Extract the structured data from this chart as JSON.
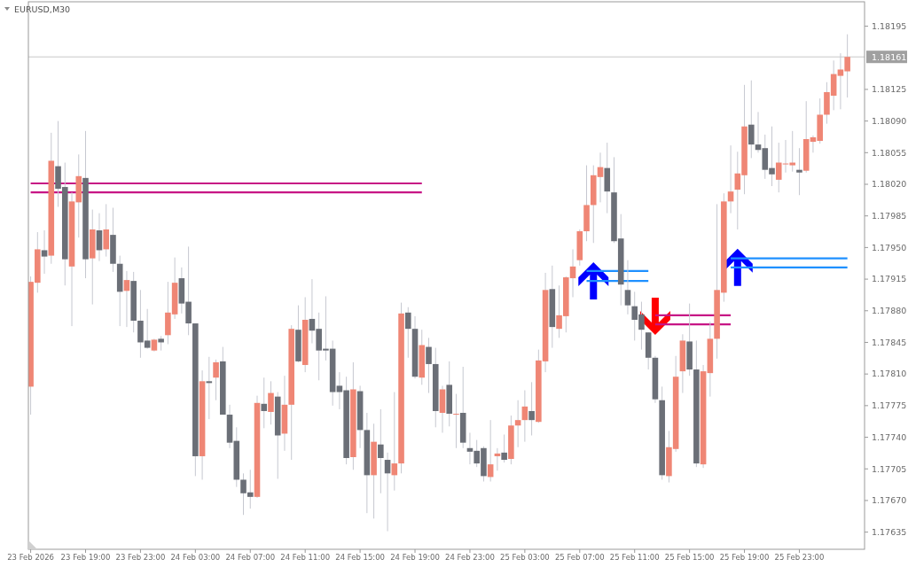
{
  "chart_data": {
    "type": "candlestick",
    "title": "EURUSD,M30",
    "x": [
      "2026-02-23T15:00",
      "2026-02-23T15:30",
      "2026-02-23T16:00",
      "2026-02-23T16:30",
      "2026-02-23T17:00",
      "2026-02-23T17:30",
      "2026-02-23T18:00",
      "2026-02-23T18:30",
      "2026-02-23T19:00",
      "2026-02-23T19:30",
      "2026-02-23T20:00",
      "2026-02-23T20:30",
      "2026-02-23T21:00",
      "2026-02-23T21:30",
      "2026-02-23T22:00",
      "2026-02-23T22:30",
      "2026-02-23T23:00",
      "2026-02-23T23:30",
      "2026-02-24T00:00",
      "2026-02-24T00:30",
      "2026-02-24T01:00",
      "2026-02-24T01:30",
      "2026-02-24T02:00",
      "2026-02-24T02:30",
      "2026-02-24T03:00",
      "2026-02-24T03:30",
      "2026-02-24T04:00",
      "2026-02-24T04:30",
      "2026-02-24T05:00",
      "2026-02-24T05:30",
      "2026-02-24T06:00",
      "2026-02-24T06:30",
      "2026-02-24T07:00",
      "2026-02-24T07:30",
      "2026-02-24T08:00",
      "2026-02-24T08:30",
      "2026-02-24T09:00",
      "2026-02-24T09:30",
      "2026-02-24T10:00",
      "2026-02-24T10:30",
      "2026-02-24T11:00",
      "2026-02-24T11:30",
      "2026-02-24T12:00",
      "2026-02-24T12:30",
      "2026-02-24T13:00",
      "2026-02-24T13:30",
      "2026-02-24T14:00",
      "2026-02-24T14:30",
      "2026-02-24T15:00",
      "2026-02-24T15:30",
      "2026-02-24T16:00",
      "2026-02-24T16:30",
      "2026-02-24T17:00",
      "2026-02-24T17:30",
      "2026-02-24T18:00",
      "2026-02-24T18:30",
      "2026-02-24T19:00",
      "2026-02-24T19:30",
      "2026-02-24T20:00",
      "2026-02-24T20:30",
      "2026-02-24T21:00",
      "2026-02-24T21:30",
      "2026-02-24T22:00",
      "2026-02-24T22:30",
      "2026-02-24T23:00",
      "2026-02-24T23:30",
      "2026-02-25T00:00",
      "2026-02-25T00:30",
      "2026-02-25T01:00",
      "2026-02-25T01:30",
      "2026-02-25T02:00",
      "2026-02-25T02:30",
      "2026-02-25T03:00",
      "2026-02-25T03:30",
      "2026-02-25T04:00",
      "2026-02-25T04:30",
      "2026-02-25T05:00",
      "2026-02-25T05:30",
      "2026-02-25T06:00",
      "2026-02-25T06:30",
      "2026-02-25T07:00",
      "2026-02-25T07:30",
      "2026-02-25T08:00",
      "2026-02-25T08:30",
      "2026-02-25T09:00",
      "2026-02-25T09:30",
      "2026-02-25T10:00",
      "2026-02-25T10:30",
      "2026-02-25T11:00",
      "2026-02-25T11:30",
      "2026-02-25T12:00",
      "2026-02-25T12:30",
      "2026-02-25T13:00",
      "2026-02-25T13:30",
      "2026-02-25T14:00",
      "2026-02-25T14:30",
      "2026-02-25T15:00",
      "2026-02-25T15:30",
      "2026-02-25T16:00",
      "2026-02-25T16:30",
      "2026-02-25T17:00",
      "2026-02-25T17:30",
      "2026-02-25T18:00",
      "2026-02-25T18:30",
      "2026-02-25T19:00",
      "2026-02-25T19:30",
      "2026-02-25T20:00",
      "2026-02-25T20:30",
      "2026-02-25T21:00",
      "2026-02-25T21:30",
      "2026-02-25T22:00",
      "2026-02-25T22:30",
      "2026-02-25T23:00",
      "2026-02-25T23:30",
      "2026-02-26T00:00",
      "2026-02-26T00:30",
      "2026-02-26T01:00",
      "2026-02-26T01:30",
      "2026-02-26T02:00",
      "2026-02-26T02:30"
    ],
    "ohlc": [
      [
        1.17796,
        1.17918,
        1.17765,
        1.17912
      ],
      [
        1.17911,
        1.17967,
        1.179,
        1.17948
      ],
      [
        1.17947,
        1.17969,
        1.17921,
        1.1794
      ],
      [
        1.17941,
        1.18077,
        1.17932,
        1.18046
      ],
      [
        1.1804,
        1.1809,
        1.17995,
        1.18015
      ],
      [
        1.18017,
        1.18044,
        1.17908,
        1.17937
      ],
      [
        1.17929,
        1.18011,
        1.17863,
        1.18001
      ],
      [
        1.18,
        1.18053,
        1.17961,
        1.18029
      ],
      [
        1.18027,
        1.18079,
        1.17916,
        1.17937
      ],
      [
        1.17938,
        1.17992,
        1.17887,
        1.1797
      ],
      [
        1.17969,
        1.17988,
        1.17935,
        1.17947
      ],
      [
        1.17948,
        1.17998,
        1.1794,
        1.1797
      ],
      [
        1.17964,
        1.17994,
        1.17923,
        1.17932
      ],
      [
        1.17932,
        1.17941,
        1.17863,
        1.17901
      ],
      [
        1.17902,
        1.17924,
        1.17862,
        1.17914
      ],
      [
        1.17913,
        1.17923,
        1.17856,
        1.17869
      ],
      [
        1.17869,
        1.17903,
        1.17828,
        1.17845
      ],
      [
        1.17847,
        1.17882,
        1.17838,
        1.17839
      ],
      [
        1.17836,
        1.17849,
        1.17835,
        1.17848
      ],
      [
        1.17849,
        1.17852,
        1.17836,
        1.17845
      ],
      [
        1.17853,
        1.17912,
        1.17843,
        1.17878
      ],
      [
        1.17876,
        1.17939,
        1.17871,
        1.17911
      ],
      [
        1.17916,
        1.17928,
        1.17877,
        1.17888
      ],
      [
        1.1789,
        1.17951,
        1.17853,
        1.17866
      ],
      [
        1.17866,
        1.17866,
        1.17697,
        1.17719
      ],
      [
        1.17719,
        1.17814,
        1.17693,
        1.17802
      ],
      [
        1.17802,
        1.17829,
        1.1776,
        1.178
      ],
      [
        1.17806,
        1.17826,
        1.17781,
        1.17823
      ],
      [
        1.17824,
        1.1784,
        1.17765,
        1.17765
      ],
      [
        1.17765,
        1.17776,
        1.17728,
        1.17734
      ],
      [
        1.17736,
        1.17751,
        1.17685,
        1.17693
      ],
      [
        1.17693,
        1.177,
        1.17654,
        1.17678
      ],
      [
        1.17679,
        1.17704,
        1.17661,
        1.17674
      ],
      [
        1.17674,
        1.17786,
        1.17673,
        1.17778
      ],
      [
        1.17777,
        1.17806,
        1.1775,
        1.17769
      ],
      [
        1.17768,
        1.17802,
        1.17754,
        1.17789
      ],
      [
        1.17785,
        1.1779,
        1.17694,
        1.17742
      ],
      [
        1.17744,
        1.17808,
        1.17725,
        1.17776
      ],
      [
        1.17776,
        1.17864,
        1.17715,
        1.1786
      ],
      [
        1.17859,
        1.17886,
        1.17823,
        1.17824
      ],
      [
        1.1782,
        1.17895,
        1.17812,
        1.1787
      ],
      [
        1.17871,
        1.17915,
        1.17844,
        1.17858
      ],
      [
        1.1786,
        1.17878,
        1.17803,
        1.17836
      ],
      [
        1.17838,
        1.17896,
        1.17825,
        1.17836
      ],
      [
        1.17838,
        1.17847,
        1.17775,
        1.1779
      ],
      [
        1.17797,
        1.17812,
        1.17771,
        1.1779
      ],
      [
        1.17792,
        1.17807,
        1.1771,
        1.17717
      ],
      [
        1.17718,
        1.17823,
        1.17704,
        1.17793
      ],
      [
        1.17791,
        1.17797,
        1.17728,
        1.17748
      ],
      [
        1.17748,
        1.17767,
        1.17656,
        1.17698
      ],
      [
        1.17698,
        1.17755,
        1.1765,
        1.17735
      ],
      [
        1.17732,
        1.17771,
        1.17678,
        1.17717
      ],
      [
        1.17715,
        1.17723,
        1.17636,
        1.177
      ],
      [
        1.17698,
        1.1779,
        1.17681,
        1.17711
      ],
      [
        1.17711,
        1.17889,
        1.177,
        1.17877
      ],
      [
        1.17878,
        1.17884,
        1.17828,
        1.1786
      ],
      [
        1.1786,
        1.17874,
        1.17805,
        1.17807
      ],
      [
        1.17806,
        1.17859,
        1.17798,
        1.17842
      ],
      [
        1.1784,
        1.1785,
        1.17789,
        1.17821
      ],
      [
        1.17821,
        1.17839,
        1.17751,
        1.17769
      ],
      [
        1.17767,
        1.17797,
        1.17745,
        1.17793
      ],
      [
        1.17798,
        1.17824,
        1.17752,
        1.17766
      ],
      [
        1.17765,
        1.17788,
        1.17728,
        1.17766
      ],
      [
        1.17767,
        1.17818,
        1.17728,
        1.17734
      ],
      [
        1.17728,
        1.17745,
        1.1771,
        1.17724
      ],
      [
        1.17725,
        1.17737,
        1.17707,
        1.17711
      ],
      [
        1.17728,
        1.1773,
        1.17691,
        1.17697
      ],
      [
        1.17696,
        1.17759,
        1.17691,
        1.1771
      ],
      [
        1.17719,
        1.17728,
        1.17703,
        1.17722
      ],
      [
        1.17723,
        1.17743,
        1.17712,
        1.17715
      ],
      [
        1.17716,
        1.17764,
        1.1771,
        1.17753
      ],
      [
        1.17753,
        1.17781,
        1.17729,
        1.17759
      ],
      [
        1.17759,
        1.17792,
        1.17735,
        1.17774
      ],
      [
        1.17769,
        1.17801,
        1.17742,
        1.17759
      ],
      [
        1.17757,
        1.17837,
        1.17756,
        1.17825
      ],
      [
        1.17824,
        1.17922,
        1.17812,
        1.17903
      ],
      [
        1.17904,
        1.1793,
        1.17839,
        1.17862
      ],
      [
        1.1786,
        1.17908,
        1.1785,
        1.17875
      ],
      [
        1.17874,
        1.17918,
        1.17856,
        1.17917
      ],
      [
        1.17916,
        1.17948,
        1.17895,
        1.17929
      ],
      [
        1.17936,
        1.1797,
        1.1793,
        1.17968
      ],
      [
        1.17968,
        1.18041,
        1.17957,
        1.17997
      ],
      [
        1.17997,
        1.18041,
        1.17955,
        1.1803
      ],
      [
        1.18028,
        1.18055,
        1.18,
        1.18039
      ],
      [
        1.18038,
        1.18066,
        1.17988,
        1.18012
      ],
      [
        1.18011,
        1.1805,
        1.17955,
        1.17957
      ],
      [
        1.1796,
        1.17987,
        1.17886,
        1.17909
      ],
      [
        1.17903,
        1.17936,
        1.17876,
        1.17886
      ],
      [
        1.17885,
        1.17901,
        1.17847,
        1.1787
      ],
      [
        1.17876,
        1.1789,
        1.17837,
        1.17859
      ],
      [
        1.17856,
        1.17856,
        1.17815,
        1.17828
      ],
      [
        1.17828,
        1.1783,
        1.17778,
        1.17782
      ],
      [
        1.17781,
        1.17796,
        1.17693,
        1.17698
      ],
      [
        1.17697,
        1.17747,
        1.1769,
        1.17729
      ],
      [
        1.17727,
        1.1783,
        1.17724,
        1.17807
      ],
      [
        1.17813,
        1.17854,
        1.17789,
        1.17847
      ],
      [
        1.17846,
        1.17888,
        1.17808,
        1.17815
      ],
      [
        1.17815,
        1.17847,
        1.17707,
        1.17711
      ],
      [
        1.1771,
        1.1782,
        1.17706,
        1.17813
      ],
      [
        1.17811,
        1.17868,
        1.17785,
        1.17849
      ],
      [
        1.17849,
        1.17998,
        1.17827,
        1.17903
      ],
      [
        1.179,
        1.1801,
        1.1789,
        1.18001
      ],
      [
        1.18001,
        1.18063,
        1.17988,
        1.18012
      ],
      [
        1.18014,
        1.18056,
        1.1797,
        1.18032
      ],
      [
        1.1803,
        1.1813,
        1.18009,
        1.18084
      ],
      [
        1.18086,
        1.18135,
        1.18049,
        1.18064
      ],
      [
        1.18064,
        1.181,
        1.18055,
        1.18058
      ],
      [
        1.1806,
        1.18075,
        1.18026,
        1.18036
      ],
      [
        1.18038,
        1.18084,
        1.18018,
        1.18031
      ],
      [
        1.18025,
        1.18066,
        1.18011,
        1.18044
      ],
      [
        1.18042,
        1.18069,
        1.18033,
        1.18043
      ],
      [
        1.18041,
        1.18079,
        1.18034,
        1.18044
      ],
      [
        1.18036,
        1.1806,
        1.18008,
        1.18033
      ],
      [
        1.18035,
        1.18112,
        1.18033,
        1.1807
      ],
      [
        1.18067,
        1.18074,
        1.18055,
        1.18072
      ],
      [
        1.18068,
        1.18115,
        1.18065,
        1.18097
      ],
      [
        1.18097,
        1.18133,
        1.18087,
        1.18122
      ],
      [
        1.18118,
        1.18157,
        1.18102,
        1.18142
      ],
      [
        1.1814,
        1.18165,
        1.18103,
        1.18147
      ],
      [
        1.18145,
        1.18186,
        1.18116,
        1.18161
      ]
    ],
    "colors": [
      "#ef8675",
      "#ef8675",
      "#6b6f77",
      "#ef8675",
      "#6b6f77",
      "#6b6f77",
      "#ef8675",
      "#ef8675",
      "#6b6f77",
      "#ef8675",
      "#6b6f77",
      "#ef8675",
      "#6b6f77",
      "#6b6f77",
      "#ef8675",
      "#6b6f77",
      "#6b6f77",
      "#6b6f77",
      "#ef8675",
      "#6b6f77",
      "#ef8675",
      "#ef8675",
      "#6b6f77",
      "#6b6f77",
      "#6b6f77",
      "#ef8675",
      "#6b6f77",
      "#ef8675",
      "#6b6f77",
      "#6b6f77",
      "#6b6f77",
      "#6b6f77",
      "#6b6f77",
      "#ef8675",
      "#6b6f77",
      "#ef8675",
      "#6b6f77",
      "#ef8675",
      "#ef8675",
      "#6b6f77",
      "#ef8675",
      "#6b6f77",
      "#6b6f77",
      "#6b6f77",
      "#6b6f77",
      "#6b6f77",
      "#6b6f77",
      "#ef8675",
      "#6b6f77",
      "#6b6f77",
      "#ef8675",
      "#6b6f77",
      "#6b6f77",
      "#ef8675",
      "#ef8675",
      "#6b6f77",
      "#6b6f77",
      "#ef8675",
      "#6b6f77",
      "#6b6f77",
      "#ef8675",
      "#6b6f77",
      "#ef8675",
      "#6b6f77",
      "#6b6f77",
      "#6b6f77",
      "#6b6f77",
      "#ef8675",
      "#ef8675",
      "#6b6f77",
      "#ef8675",
      "#ef8675",
      "#ef8675",
      "#6b6f77",
      "#ef8675",
      "#ef8675",
      "#6b6f77",
      "#ef8675",
      "#ef8675",
      "#ef8675",
      "#ef8675",
      "#ef8675",
      "#ef8675",
      "#ef8675",
      "#6b6f77",
      "#6b6f77",
      "#6b6f77",
      "#6b6f77",
      "#6b6f77",
      "#6b6f77",
      "#6b6f77",
      "#6b6f77",
      "#6b6f77",
      "#ef8675",
      "#ef8675",
      "#ef8675",
      "#6b6f77",
      "#6b6f77",
      "#ef8675",
      "#ef8675",
      "#ef8675",
      "#ef8675",
      "#ef8675",
      "#ef8675",
      "#ef8675",
      "#6b6f77",
      "#6b6f77",
      "#6b6f77",
      "#6b6f77",
      "#ef8675",
      "#ef8675",
      "#ef8675",
      "#6b6f77",
      "#ef8675",
      "#ef8675",
      "#ef8675",
      "#ef8675",
      "#ef8675",
      "#ef8675",
      "#ef8675"
    ],
    "series": [
      {
        "type": "line",
        "color": "#c71585",
        "x": [
          "2026-02-23T15:00",
          "2026-02-24T19:30"
        ],
        "values": [
          1.18021,
          1.18021
        ]
      },
      {
        "type": "line",
        "color": "#c71585",
        "x": [
          "2026-02-23T15:00",
          "2026-02-24T19:30"
        ],
        "values": [
          1.18011,
          1.18011
        ]
      },
      {
        "type": "line",
        "color": "#1e90ff",
        "x": [
          "2026-02-25T07:30",
          "2026-02-25T12:00"
        ],
        "values": [
          1.17924,
          1.17924
        ]
      },
      {
        "type": "line",
        "color": "#1e90ff",
        "x": [
          "2026-02-25T07:30",
          "2026-02-25T12:00"
        ],
        "values": [
          1.17913,
          1.17913
        ]
      },
      {
        "type": "line",
        "color": "#c71585",
        "x": [
          "2026-02-25T12:30",
          "2026-02-25T18:00"
        ],
        "values": [
          1.17875,
          1.17875
        ]
      },
      {
        "type": "line",
        "color": "#c71585",
        "x": [
          "2026-02-25T12:30",
          "2026-02-25T18:00"
        ],
        "values": [
          1.17865,
          1.17865
        ]
      },
      {
        "type": "line",
        "color": "#1e90ff",
        "x": [
          "2026-02-25T18:00",
          "2026-02-26T02:30"
        ],
        "values": [
          1.17938,
          1.17938
        ]
      },
      {
        "type": "line",
        "color": "#1e90ff",
        "x": [
          "2026-02-25T18:00",
          "2026-02-26T02:30"
        ],
        "values": [
          1.17928,
          1.17928
        ]
      },
      {
        "type": "scatter",
        "color": "#0000ff",
        "marker": "triangle",
        "x": [
          "2026-02-25T08:00",
          "2026-02-25T18:30"
        ],
        "values": [
          1.17913,
          1.17928
        ]
      },
      {
        "type": "scatter",
        "color": "#ff0000",
        "marker": "triangle",
        "x": [
          "2026-02-25T12:30"
        ],
        "values": [
          1.17874
        ]
      }
    ],
    "xlim": [
      "2026-02-23T14:50",
      "2026-02-26T03:45"
    ],
    "xticks": [
      {
        "value": "2026-02-23T15:00",
        "label": "23 Feb 2026"
      },
      {
        "value": "2026-02-23T19:00",
        "label": "23 Feb 19:00"
      },
      {
        "value": "2026-02-23T23:00",
        "label": "23 Feb 23:00"
      },
      {
        "value": "2026-02-24T03:00",
        "label": "24 Feb 03:00"
      },
      {
        "value": "2026-02-24T07:00",
        "label": "24 Feb 07:00"
      },
      {
        "value": "2026-02-24T11:00",
        "label": "24 Feb 11:00"
      },
      {
        "value": "2026-02-24T15:00",
        "label": "24 Feb 15:00"
      },
      {
        "value": "2026-02-24T19:00",
        "label": "24 Feb 19:00"
      },
      {
        "value": "2026-02-24T23:00",
        "label": "24 Feb 23:00"
      },
      {
        "value": "2026-02-25T03:00",
        "label": "25 Feb 03:00"
      },
      {
        "value": "2026-02-25T07:00",
        "label": "25 Feb 07:00"
      },
      {
        "value": "2026-02-25T11:00",
        "label": "25 Feb 11:00"
      },
      {
        "value": "2026-02-25T15:00",
        "label": "25 Feb 15:00"
      },
      {
        "value": "2026-02-25T19:00",
        "label": "25 Feb 19:00"
      },
      {
        "value": "2026-02-25T23:00",
        "label": "25 Feb 23:00"
      }
    ],
    "ylim": [
      1.17616,
      1.18222
    ],
    "yticks": [
      1.17635,
      {
        "value": 1.1767,
        "label": "1.17670"
      },
      1.17705,
      {
        "value": 1.1774,
        "label": "1.17740"
      },
      1.17775,
      {
        "value": 1.1781,
        "label": "1.17810"
      },
      1.17845,
      {
        "value": 1.1788,
        "label": "1.17880"
      },
      1.17915,
      {
        "value": 1.1795,
        "label": "1.17950"
      },
      1.17985,
      {
        "value": 1.1802,
        "label": "1.18020"
      },
      1.18055,
      {
        "value": 1.1809,
        "label": "1.18090"
      },
      1.18125,
      1.18195
    ],
    "ref_lines": [
      {
        "axis": "y",
        "value": 1.18161,
        "label": "1.18161",
        "color": "#c8c8c8"
      }
    ]
  }
}
